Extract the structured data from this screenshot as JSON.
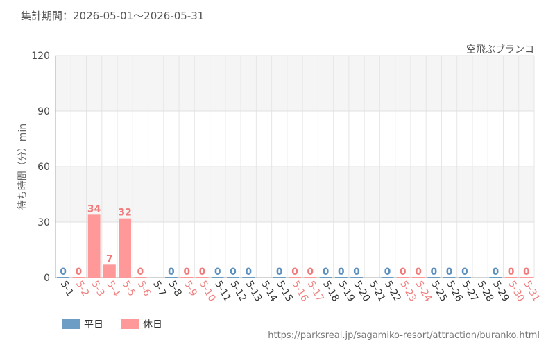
{
  "period": "集計期間：2026-05-01～2026-05-31",
  "source": "https://parksreal.jp/sagamiko-resort/attraction/buranko.html",
  "chart_data": {
    "type": "bar",
    "title": "空飛ぶブランコ",
    "y_label": "待ち時間（分）min",
    "categories": [
      "5-1",
      "5-2",
      "5-3",
      "5-4",
      "5-5",
      "5-6",
      "5-7",
      "5-8",
      "5-9",
      "5-10",
      "5-11",
      "5-12",
      "5-13",
      "5-14",
      "5-15",
      "5-16",
      "5-17",
      "5-18",
      "5-19",
      "5-20",
      "5-21",
      "5-22",
      "5-23",
      "5-24",
      "5-25",
      "5-26",
      "5-27",
      "5-28",
      "5-29",
      "5-30",
      "5-31"
    ],
    "series": [
      {
        "name": "平日",
        "color": "#6b9dc5",
        "values": [
          0,
          null,
          null,
          null,
          null,
          null,
          null,
          0,
          null,
          null,
          0,
          0,
          0,
          null,
          0,
          null,
          null,
          0,
          0,
          0,
          null,
          0,
          null,
          null,
          0,
          0,
          0,
          null,
          0,
          null,
          null
        ]
      },
      {
        "name": "休日",
        "color": "#ff9999",
        "values": [
          null,
          0,
          34,
          7,
          32,
          0,
          null,
          null,
          0,
          0,
          null,
          null,
          null,
          null,
          null,
          0,
          0,
          null,
          null,
          null,
          null,
          null,
          0,
          0,
          null,
          null,
          null,
          null,
          null,
          0,
          0
        ]
      }
    ],
    "ylim": [
      0,
      120
    ],
    "yticks": [
      0,
      30,
      60,
      90,
      120
    ],
    "grid": true,
    "legend": "bottom-left"
  }
}
